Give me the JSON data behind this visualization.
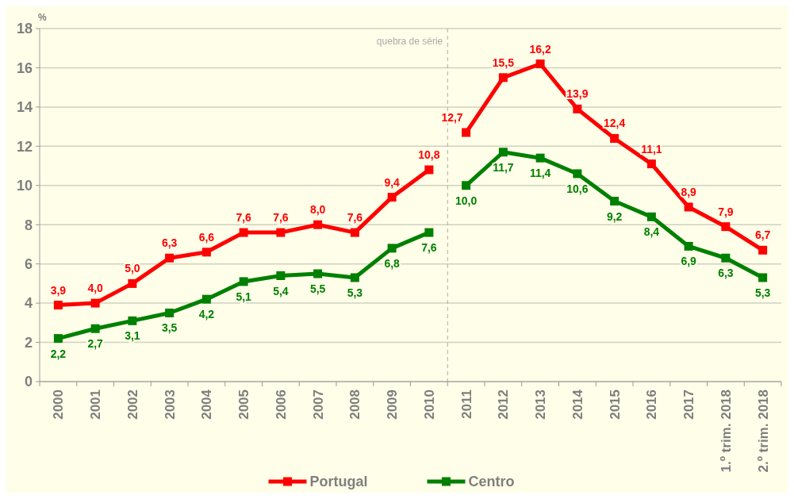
{
  "chart_data": {
    "type": "line",
    "ylabel": "%",
    "categories": [
      "2000",
      "2001",
      "2002",
      "2003",
      "2004",
      "2005",
      "2006",
      "2007",
      "2008",
      "2009",
      "2010",
      "2011",
      "2012",
      "2013",
      "2014",
      "2015",
      "2016",
      "2017",
      "1.º trim. 2018",
      "2.º trim. 2018"
    ],
    "series": [
      {
        "name": "Portugal",
        "color": "#ff0000",
        "values": [
          3.9,
          4.0,
          5.0,
          6.3,
          6.6,
          7.6,
          7.6,
          8.0,
          7.6,
          9.4,
          10.8,
          null,
          null,
          null,
          null,
          null,
          null,
          null,
          null,
          null
        ],
        "value_labels": [
          "3,9",
          "4,0",
          "5,0",
          "6,3",
          "6,6",
          "7,6",
          "7,6",
          "8,0",
          "7,6",
          "9,4",
          "10,8",
          null,
          null,
          null,
          null,
          null,
          null,
          null,
          null,
          null
        ]
      },
      {
        "name": "Centro",
        "color": "#008000",
        "values": [
          2.2,
          2.7,
          3.1,
          3.5,
          4.2,
          5.1,
          5.4,
          5.5,
          5.3,
          6.8,
          7.6,
          null,
          null,
          null,
          null,
          null,
          null,
          null,
          null,
          null
        ],
        "value_labels": [
          "2,2",
          "2,7",
          "3,1",
          "3,5",
          "4,2",
          "5,1",
          "5,4",
          "5,5",
          "5,3",
          "6,8",
          "7,6",
          null,
          null,
          null,
          null,
          null,
          null,
          null,
          null,
          null
        ]
      },
      {
        "color": "#ff0000",
        "values": [
          null,
          null,
          null,
          null,
          null,
          null,
          null,
          null,
          null,
          null,
          null,
          12.7,
          15.5,
          16.2,
          13.9,
          12.4,
          11.1,
          8.9,
          7.9,
          6.7
        ],
        "value_labels": [
          null,
          null,
          null,
          null,
          null,
          null,
          null,
          null,
          null,
          null,
          null,
          "12,7",
          "15,5",
          "16,2",
          "13,9",
          "12,4",
          "11,1",
          "8,9",
          "7,9",
          "6,7"
        ]
      },
      {
        "color": "#008000",
        "values": [
          null,
          null,
          null,
          null,
          null,
          null,
          null,
          null,
          null,
          null,
          null,
          10.0,
          11.7,
          11.4,
          10.6,
          9.2,
          8.4,
          6.9,
          6.3,
          5.3
        ],
        "value_labels": [
          null,
          null,
          null,
          null,
          null,
          null,
          null,
          null,
          null,
          null,
          null,
          "10,0",
          "11,7",
          "11,4",
          "10,6",
          "9,2",
          "8,4",
          "6,9",
          "6,3",
          "5,3"
        ]
      }
    ],
    "ylim": [
      0,
      18
    ],
    "yticks": [
      0,
      2,
      4,
      6,
      8,
      10,
      12,
      14,
      16,
      18
    ],
    "grid": "y",
    "legend": "bottom",
    "marker": "square",
    "line_style": "solid",
    "annotations": [
      "quebra de série"
    ]
  }
}
